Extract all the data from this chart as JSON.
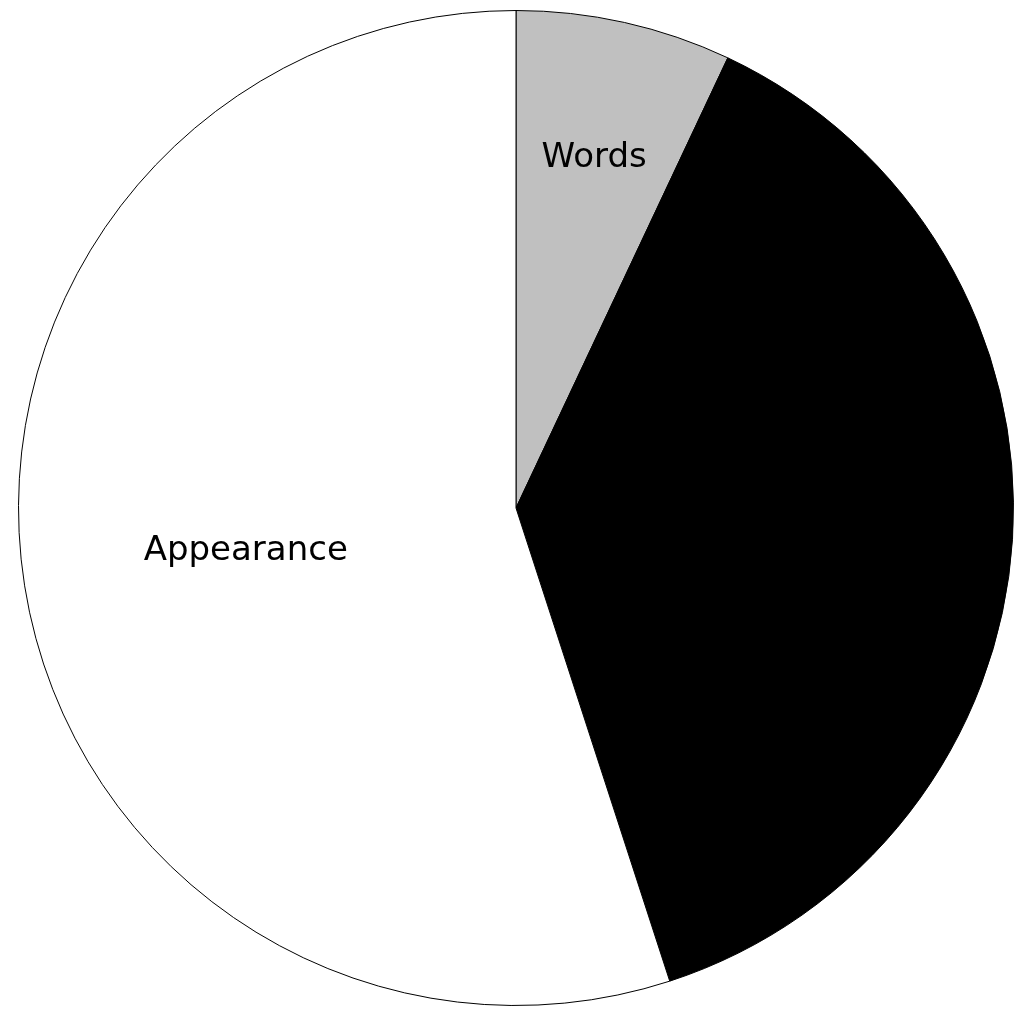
{
  "chart_data": {
    "type": "pie",
    "categories": [
      "Words",
      null,
      "Appearance"
    ],
    "values": [
      7,
      38,
      55
    ],
    "colors": [
      "#c0c0c0",
      "#000000",
      "#ffffff"
    ],
    "legend": false
  }
}
